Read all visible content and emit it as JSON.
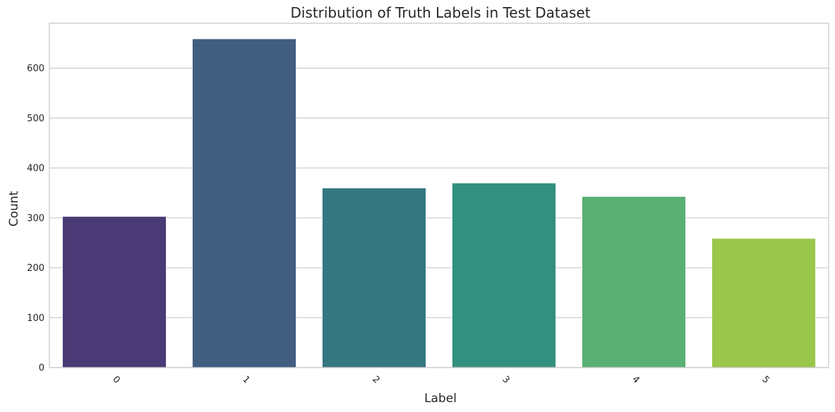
{
  "chart_data": {
    "type": "bar",
    "title": "Distribution of Truth Labels in Test Dataset",
    "xlabel": "Label",
    "ylabel": "Count",
    "categories": [
      "0",
      "1",
      "2",
      "3",
      "4",
      "5"
    ],
    "values": [
      303,
      659,
      360,
      370,
      343,
      259
    ],
    "colors": [
      "#4a3a75",
      "#415d80",
      "#357781",
      "#32907e",
      "#5ab073",
      "#9ac64b"
    ],
    "ylim": [
      0,
      690
    ],
    "yticks": [
      "0",
      "100",
      "200",
      "300",
      "400",
      "500",
      "600"
    ],
    "grid": true,
    "xtick_rotation": 45
  }
}
